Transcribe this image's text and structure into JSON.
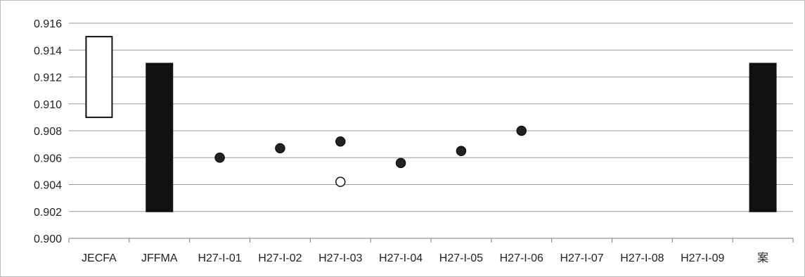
{
  "chart_data": {
    "type": "range-dot",
    "title": "",
    "xlabel": "",
    "ylabel": "",
    "categories": [
      "JECFA",
      "JFFMA",
      "H27-I-01",
      "H27-I-02",
      "H27-I-03",
      "H27-I-04",
      "H27-I-05",
      "H27-I-06",
      "H27-I-07",
      "H27-I-08",
      "H27-I-09",
      "案"
    ],
    "ylim": [
      0.9,
      0.916
    ],
    "yticks": [
      "0.900",
      "0.902",
      "0.904",
      "0.906",
      "0.908",
      "0.910",
      "0.912",
      "0.914",
      "0.916"
    ],
    "grid": true,
    "ranges": [
      {
        "category": "JECFA",
        "low": 0.909,
        "high": 0.915,
        "fill": "#ffffff"
      },
      {
        "category": "JFFMA",
        "low": 0.902,
        "high": 0.913,
        "fill": "#111111"
      },
      {
        "category": "案",
        "low": 0.902,
        "high": 0.913,
        "fill": "#111111"
      }
    ],
    "points": [
      {
        "category": "H27-I-01",
        "value": 0.906,
        "fill": "#222222"
      },
      {
        "category": "H27-I-02",
        "value": 0.9067,
        "fill": "#222222"
      },
      {
        "category": "H27-I-03",
        "value": 0.9072,
        "fill": "#222222"
      },
      {
        "category": "H27-I-03",
        "value": 0.9042,
        "fill": "#ffffff"
      },
      {
        "category": "H27-I-04",
        "value": 0.9056,
        "fill": "#222222"
      },
      {
        "category": "H27-I-05",
        "value": 0.9065,
        "fill": "#222222"
      },
      {
        "category": "H27-I-06",
        "value": 0.908,
        "fill": "#222222"
      }
    ],
    "colors": {
      "grid": "#9a9a9a",
      "axis": "#7a7a7a",
      "frame": "#bdbdbd",
      "text": "#222222"
    }
  }
}
